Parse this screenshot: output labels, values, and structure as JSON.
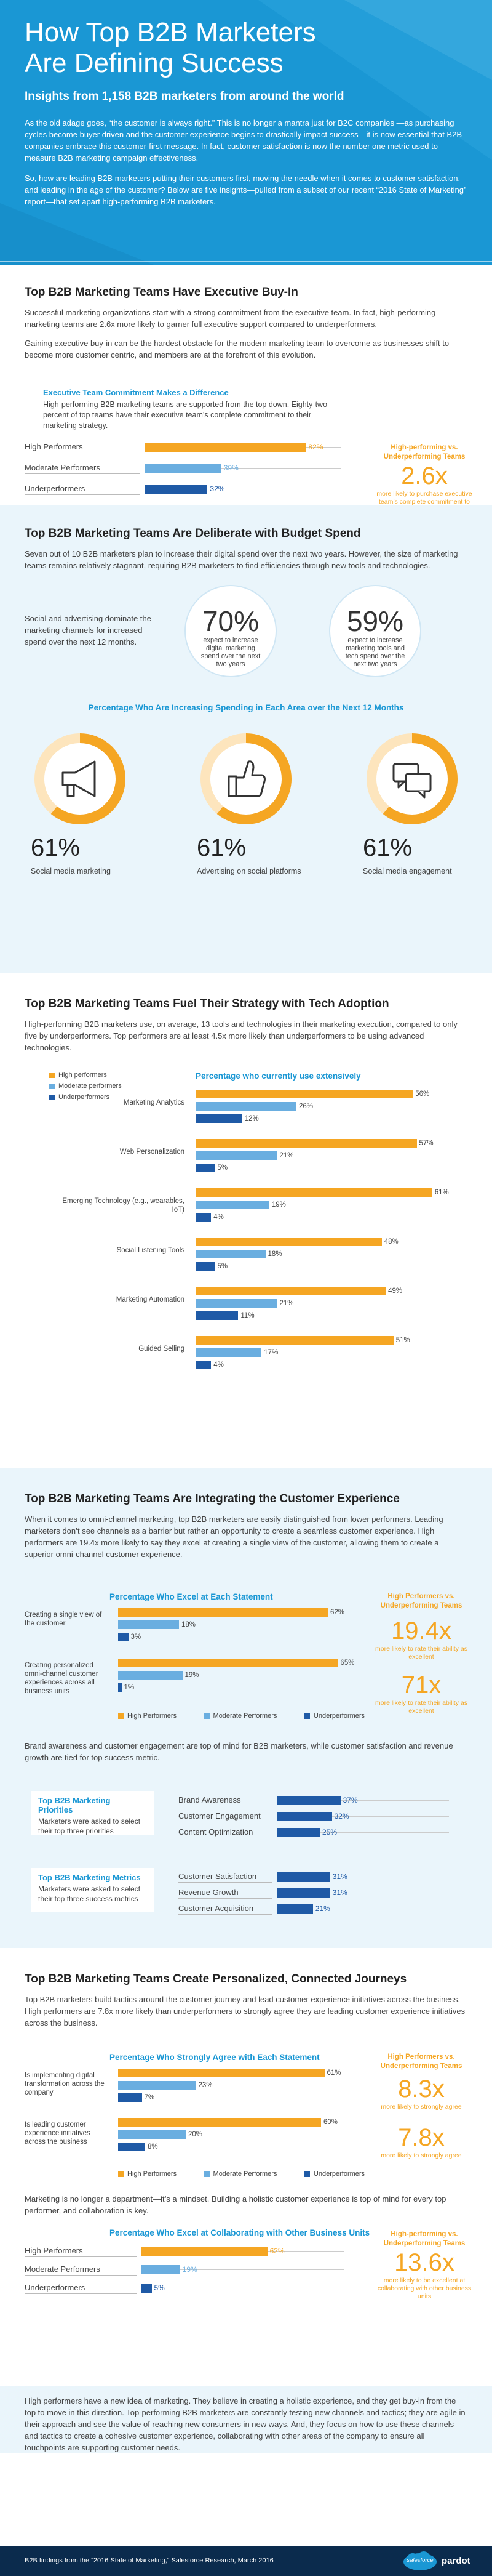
{
  "header": {
    "title_line1": "How Top B2B Marketers",
    "title_line2": "Are Defining Success",
    "subtitle": "Insights from 1,158 B2B marketers from around the world",
    "para1": "As the old adage goes, “the customer is always right.” This is no longer a mantra just for B2C companies —as purchasing cycles become buyer driven and the customer experience begins to drastically impact success—it is now essential that B2B companies embrace this customer-first message. In fact, customer satisfaction is now the number one metric used to measure B2B marketing campaign effectiveness.",
    "para2": "So, how are leading B2B marketers putting their customers first, moving the needle when it comes to customer satisfaction, and leading in the age of the customer? Below are five insights—pulled from a subset of our recent “2016 State of Marketing” report—that set apart high-performing B2B marketers."
  },
  "colors": {
    "high": "#f5a623",
    "moderate": "#6aaee0",
    "under": "#1f5aa6",
    "brand": "#1a97d4",
    "footer": "#0b2b4d"
  },
  "s1": {
    "title": "Top B2B Marketing Teams Have Executive Buy-In",
    "p1": "Successful marketing organizations start with a strong commitment from the executive team. In fact, high-performing marketing teams are 2.6x more likely to garner full executive support compared to underperformers.",
    "p2": "Gaining executive buy-in can be the hardest obstacle for the modern marketing team to overcome as businesses shift to become more customer centric, and members are at the forefront of this evolution.",
    "box_title": "Executive Team Commitment Makes a Difference",
    "box_text": "High-performing B2B marketing teams are supported from the top down. Eighty-two percent of top teams have their executive team’s complete commitment to their marketing strategy.",
    "callout_head": "High-performing vs. Underperforming Teams",
    "callout_num": "2.6x",
    "callout_text": "more likely to purchase executive team’s complete commitment to the current marketing strategy"
  },
  "s2": {
    "title": "Top B2B Marketing Teams Are Deliberate with Budget Spend",
    "p1": "Seven out of 10 B2B marketers plan to increase their digital spend over the next two years. However, the size of marketing teams remains relatively stagnant, requiring B2B marketers to find efficiencies through new tools and technologies.",
    "side_text": "Social and advertising dominate the marketing channels for increased spend over the next 12 months.",
    "stat1_num": "70%",
    "stat1_text": "expect to increase digital marketing spend over the next two years",
    "stat2_num": "59%",
    "stat2_text": "expect to increase marketing tools and tech spend over the next two years",
    "chart_title": "Percentage Who Are Increasing Spending in Each Area over the Next 12 Months",
    "icons": [
      "megaphone-icon",
      "thumbs-up-icon",
      "chat-bubbles-icon"
    ]
  },
  "s3": {
    "title": "Top B2B Marketing Teams Fuel Their Strategy with Tech Adoption",
    "p1": "High-performing B2B marketers use, on average, 13 tools and technologies in their marketing execution, compared to only five by underperformers. Top performers are at least 4.5x more likely than underperformers to be using advanced technologies.",
    "chart_title": "Percentage who currently use extensively"
  },
  "s4": {
    "title": "Top B2B Marketing Teams Are Integrating the Customer Experience",
    "p1": "When it comes to omni-channel marketing, top B2B marketers are easily distinguished from lower performers. Leading marketers don’t see channels as a barrier but rather an opportunity to create a seamless customer experience. High performers are 19.4x more likely to say they excel at creating a single view of the customer, allowing them to create a superior omni-channel customer experience.",
    "chart_title": "Percentage Who Excel at Each Statement",
    "callout_head": "High Performers vs. Underperforming Teams",
    "callout1_num": "19.4x",
    "callout1_text": "more likely to rate their ability as excellent",
    "callout2_num": "71x",
    "callout2_text": "more likely to rate their ability as excellent",
    "p2": "Brand awareness and customer engagement are top of mind for B2B marketers, while customer satisfaction and revenue growth are tied for top success metric.",
    "prio_title": "Top B2B Marketing Priorities",
    "prio_text": "Marketers were asked to select their top three priorities",
    "metric_title": "Top B2B Marketing Metrics",
    "metric_text": "Marketers were asked to select their top three success metrics"
  },
  "s5": {
    "title": "Top B2B Marketing Teams Create Personalized, Connected Journeys",
    "p1": "Top B2B marketers build tactics around the customer journey and lead customer experience initiatives across the business. High performers are 7.8x more likely than underperformers to strongly agree they are leading customer experience initiatives across the business.",
    "chart_title": "Percentage Who Strongly Agree with Each Statement",
    "callout_head": "High Performers vs. Underperforming Teams",
    "callout1_num": "8.3x",
    "callout1_text": "more likely to strongly agree",
    "callout2_num": "7.8x",
    "callout2_text": "more likely to strongly agree",
    "p2": "Marketing is no longer a department—it’s a mindset. Building a holistic customer experience is top of mind for every top performer, and collaboration is key.",
    "collab_title": "Percentage Who Excel at Collaborating with Other Business Units",
    "callout3_head": "High-performing vs. Underperforming Teams",
    "callout3_num": "13.6x",
    "callout3_text": "more likely to be excellent at collaborating with other business units"
  },
  "closing": "High performers have a new idea of marketing. They believe in creating a holistic experience, and they get buy-in from the top to move in this direction. Top-performing B2B marketers are constantly testing new channels and tactics; they are agile in their approach and see the value of reaching new consumers in new ways. And, they focus on how to use these channels and tactics to create a cohesive customer experience, collaborating with other areas of the company to ensure all touchpoints are supporting customer needs.",
  "footer": {
    "source": "B2B findings from the “2016 State of Marketing,” Salesforce Research, March 2016",
    "brand": "salesforce",
    "brand2": "pardot"
  },
  "legend": {
    "high": "High Performers",
    "moderate": "Moderate Performers",
    "under": "Underperformers"
  },
  "chart_data": [
    {
      "type": "bar",
      "title": "Executive Team Commitment Makes a Difference",
      "categories": [
        "High Performers",
        "Moderate Performers",
        "Underperformers"
      ],
      "values": [
        82,
        39,
        32
      ],
      "unit": "%",
      "ylim": [
        0,
        100
      ]
    },
    {
      "type": "bar",
      "title": "Percentage Who Are Increasing Spending in Each Area over the Next 12 Months",
      "categories": [
        "Social media marketing",
        "Advertising on social platforms",
        "Social media engagement"
      ],
      "values": [
        61,
        61,
        61
      ],
      "unit": "%"
    },
    {
      "type": "bar",
      "title": "Percentage who currently use extensively",
      "categories": [
        "Marketing Analytics",
        "Web Personalization",
        "Emerging Technology (e.g., wearables, IoT)",
        "Social Listening Tools",
        "Marketing Automation",
        "Guided Selling"
      ],
      "series": [
        {
          "name": "High performers",
          "values": [
            56,
            57,
            61,
            48,
            49,
            51
          ]
        },
        {
          "name": "Moderate performers",
          "values": [
            26,
            21,
            19,
            18,
            21,
            17
          ]
        },
        {
          "name": "Underperformers",
          "values": [
            12,
            5,
            4,
            5,
            11,
            4
          ]
        }
      ],
      "unit": "%",
      "ylim": [
        0,
        65
      ]
    },
    {
      "type": "bar",
      "title": "Percentage Who Excel at Each Statement",
      "categories": [
        "Creating a single view of the customer",
        "Creating personalized omni-channel customer experiences across all business units"
      ],
      "series": [
        {
          "name": "High Performers",
          "values": [
            62,
            65
          ]
        },
        {
          "name": "Moderate Performers",
          "values": [
            18,
            19
          ]
        },
        {
          "name": "Underperformers",
          "values": [
            3,
            1
          ]
        }
      ],
      "unit": "%",
      "ylim": [
        0,
        70
      ]
    },
    {
      "type": "bar",
      "title": "Top B2B Marketing Priorities",
      "categories": [
        "Brand Awareness",
        "Customer Engagement",
        "Content Optimization"
      ],
      "values": [
        37,
        32,
        25
      ],
      "unit": "%",
      "ylim": [
        0,
        100
      ]
    },
    {
      "type": "bar",
      "title": "Top B2B Marketing Metrics",
      "categories": [
        "Customer Satisfaction",
        "Revenue Growth",
        "Customer Acquisition"
      ],
      "values": [
        31,
        31,
        21
      ],
      "unit": "%",
      "ylim": [
        0,
        100
      ]
    },
    {
      "type": "bar",
      "title": "Percentage Who Strongly Agree with Each Statement",
      "categories": [
        "Is implementing digital transformation across the company",
        "Is leading customer experience initiatives across the business"
      ],
      "series": [
        {
          "name": "High Performers",
          "values": [
            61,
            60
          ]
        },
        {
          "name": "Moderate Performers",
          "values": [
            23,
            20
          ]
        },
        {
          "name": "Underperformers",
          "values": [
            7,
            8
          ]
        }
      ],
      "unit": "%",
      "ylim": [
        0,
        70
      ]
    },
    {
      "type": "bar",
      "title": "Percentage Who Excel at Collaborating with Other Business Units",
      "categories": [
        "High Performers",
        "Moderate Performers",
        "Underperformers"
      ],
      "values": [
        62,
        19,
        5
      ],
      "unit": "%",
      "ylim": [
        0,
        100
      ]
    }
  ]
}
